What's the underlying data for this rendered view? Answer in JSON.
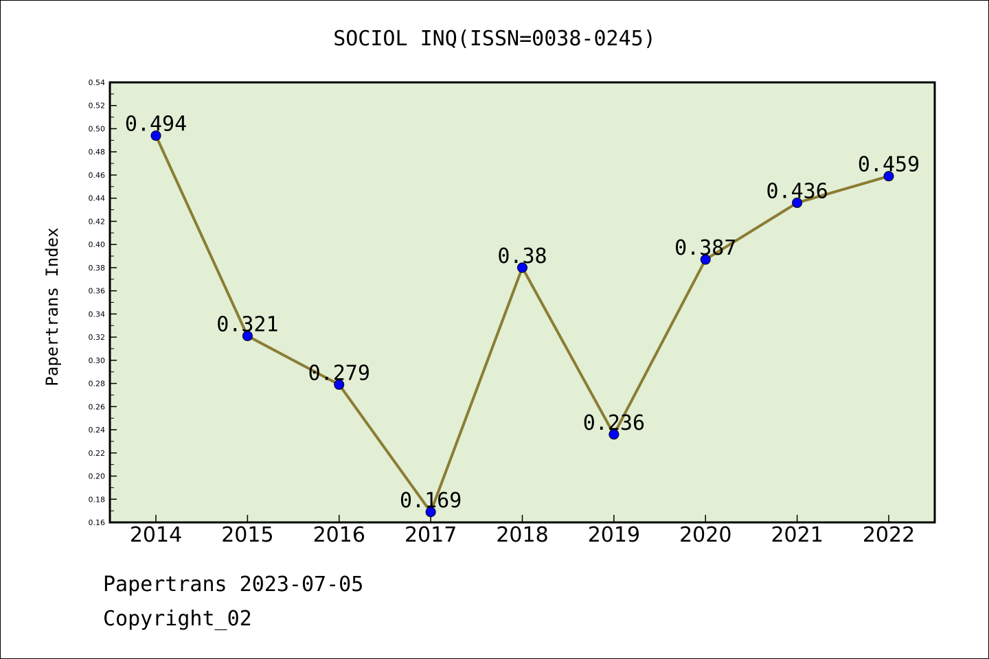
{
  "chart_data": {
    "type": "line",
    "title": "SOCIOL INQ(ISSN=0038-0245)",
    "xlabel": "",
    "ylabel": "Papertrans Index",
    "categories": [
      "2014",
      "2015",
      "2016",
      "2017",
      "2018",
      "2019",
      "2020",
      "2021",
      "2022"
    ],
    "series": [
      {
        "values": [
          0.494,
          0.321,
          0.279,
          0.169,
          0.38,
          0.236,
          0.387,
          0.436,
          0.459
        ],
        "data_labels": [
          "0.494",
          "0.321",
          "0.279",
          "0.169",
          "0.38",
          "0.236",
          "0.387",
          "0.436",
          "0.459"
        ],
        "line_color": "#8b7d35",
        "marker_color": "#0000ff"
      }
    ],
    "ylim": [
      0.16,
      0.54
    ],
    "y_ticks": [
      "0.16",
      "0.18",
      "0.20",
      "0.22",
      "0.24",
      "0.26",
      "0.28",
      "0.30",
      "0.32",
      "0.34",
      "0.36",
      "0.38",
      "0.40",
      "0.42",
      "0.44",
      "0.46",
      "0.48",
      "0.50",
      "0.52",
      "0.54"
    ],
    "grid": false,
    "plot_background": "#e2efd5"
  },
  "footer": {
    "line1": "Papertrans 2023-07-05",
    "line2": "Copyright_02"
  }
}
